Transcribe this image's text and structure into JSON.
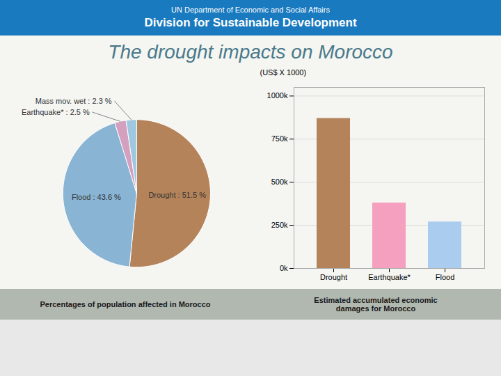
{
  "title": "The drought impacts on Morocco",
  "annotations": [
    "UN Department of Economic and Social Affairs",
    "Division for Sustainable Development"
  ],
  "chart_data": [
    {
      "type": "pie",
      "title": "Percentages of population affected in Morocco",
      "categories": [
        "Drought",
        "Flood",
        "Earthquake*",
        "Mass mov. wet"
      ],
      "values": [
        51.5,
        43.6,
        2.5,
        2.3
      ],
      "value_labels": [
        "Drought : 51.5 %",
        "Flood : 43.6 %",
        "Earthquake* : 2.5 %",
        "Mass mov. wet : 2.3 %"
      ],
      "data_labels": true,
      "colors": [
        "#b5835a",
        "#89b4d4",
        "#d4a0c0",
        "#9fc8e0"
      ]
    },
    {
      "type": "bar",
      "title": "Estimated accumulated economic\ndamages for Morocco",
      "categories": [
        "Drought",
        "Earthquake*",
        "Flood"
      ],
      "values": [
        870000,
        380000,
        270000
      ],
      "colors": [
        "#b5835a",
        "#f4a0be",
        "#aaccee"
      ],
      "ylabel": "(US$ X 1000)",
      "ylim": [
        0,
        1050000
      ],
      "yticks": [
        {
          "value": 0,
          "label": "0k"
        },
        {
          "value": 250000,
          "label": "250k"
        },
        {
          "value": 500000,
          "label": "500k"
        },
        {
          "value": 750000,
          "label": "750k"
        },
        {
          "value": 1000000,
          "label": "1000k"
        }
      ],
      "grid": true
    }
  ]
}
